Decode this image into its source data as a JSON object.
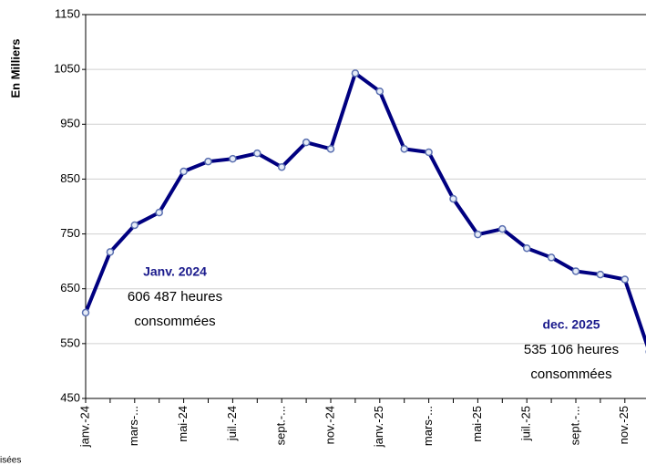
{
  "chart_data": {
    "type": "line",
    "y_label": "En Milliers",
    "categories": [
      "janv.-24",
      null,
      "mars-...",
      null,
      "mai-24",
      null,
      "juil.-24",
      null,
      "sept.-...",
      null,
      "nov.-24",
      null,
      "janv.-25",
      null,
      "mars-...",
      null,
      "mai-25",
      null,
      "juil.-25",
      null,
      "sept.-...",
      null,
      "nov.-25",
      null
    ],
    "series": [
      {
        "name": "Heures consommées",
        "color": "#000080",
        "values": [
          606.487,
          717,
          766,
          789,
          864,
          882,
          887,
          897,
          872,
          917,
          905,
          1043,
          1010,
          905,
          899,
          814,
          749,
          759,
          724,
          707,
          682,
          676,
          667,
          535.106
        ]
      }
    ],
    "ylim": [
      450,
      1150
    ],
    "yticks": [
      450,
      550,
      650,
      750,
      850,
      950,
      1050,
      1150
    ],
    "grid": true,
    "annotations": [
      {
        "index": 0,
        "title": "Janv. 2024",
        "lines": [
          "606 487 heures",
          "consommées"
        ]
      },
      {
        "index": 23,
        "title": "dec. 2025",
        "lines": [
          "535 106 heures",
          "consommées"
        ]
      }
    ],
    "footnote": "isées"
  }
}
